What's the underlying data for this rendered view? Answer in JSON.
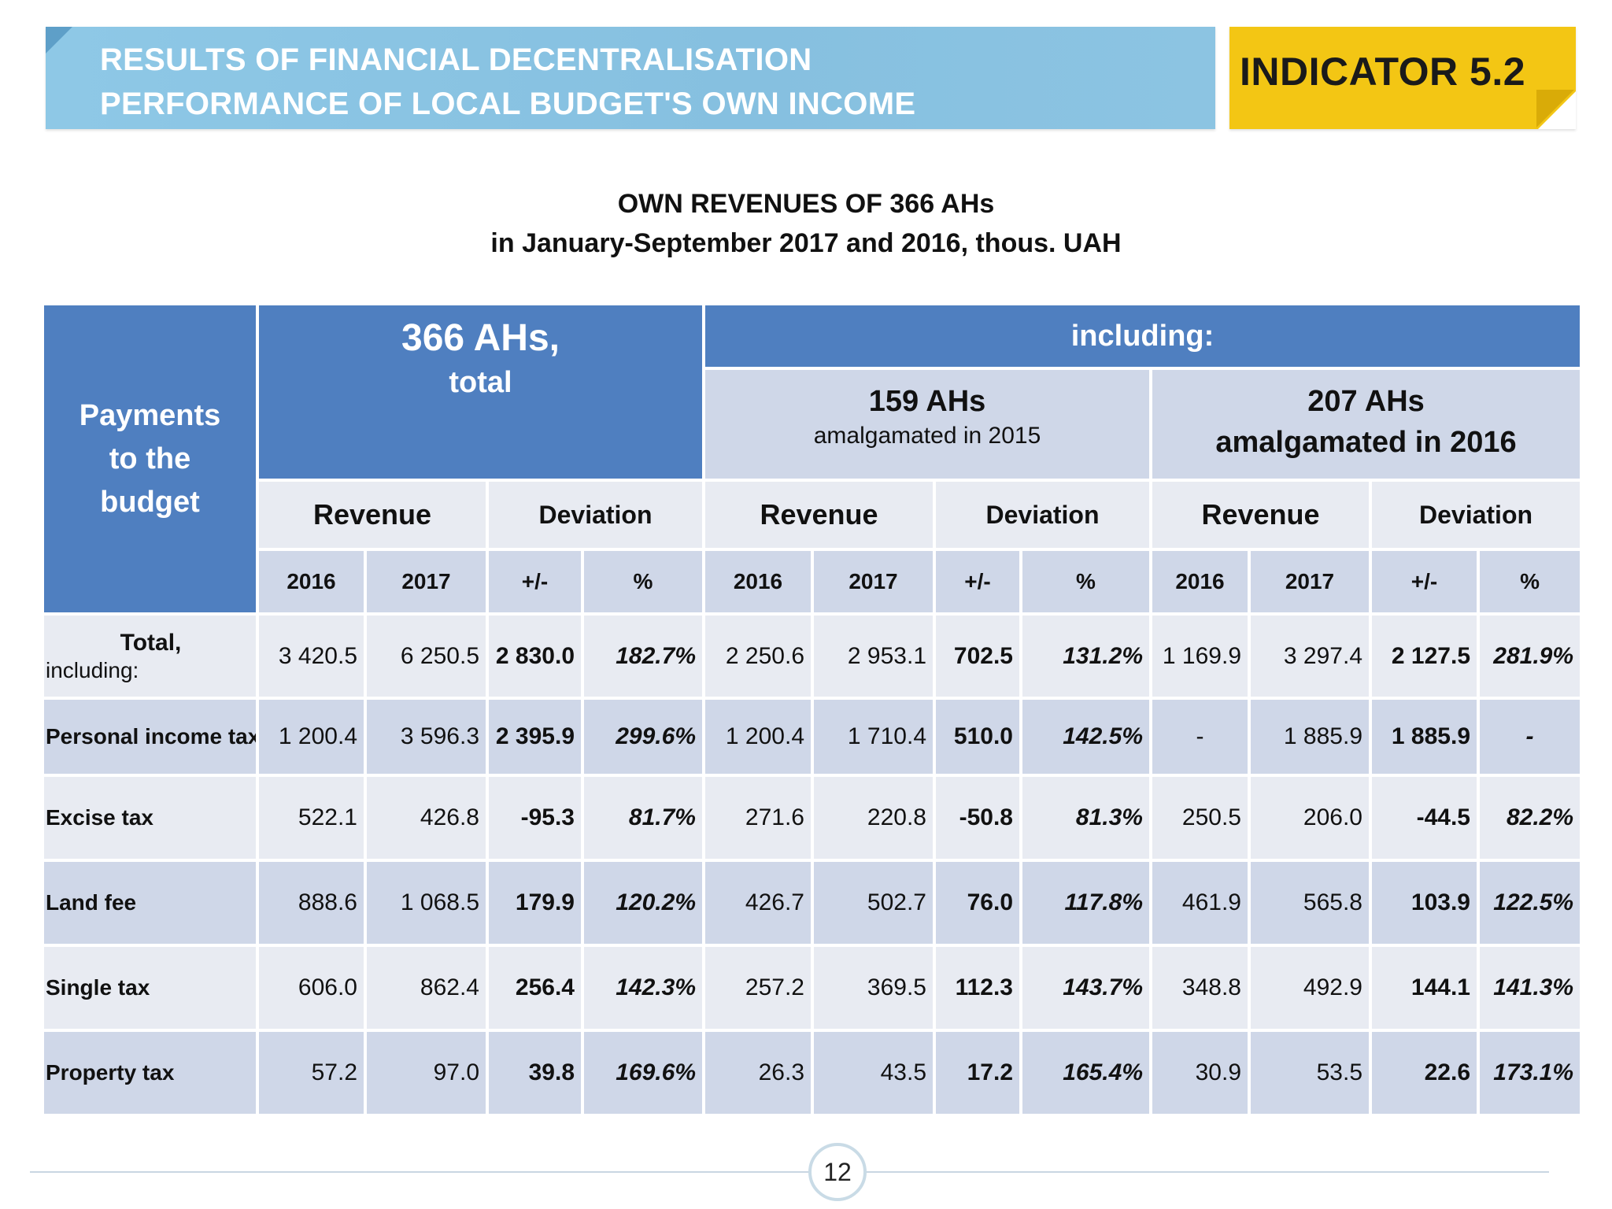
{
  "header": {
    "line1": "RESULTS OF FINANCIAL DECENTRALISATION",
    "line2": "PERFORMANCE OF LOCAL BUDGET'S OWN INCOME",
    "indicator": "INDICATOR 5.2"
  },
  "subtitle": {
    "line1": "OWN REVENUES OF 366 AHs",
    "line2": "in January-September 2017 and 2016, thous. UAH"
  },
  "table": {
    "col_payments": [
      "Payments",
      "to the",
      "budget"
    ],
    "group_total": {
      "line1": "366 AHs,",
      "line2": "total"
    },
    "including": "including:",
    "group_a": {
      "line1": "159 AHs",
      "line2": "amalgamated in 2015"
    },
    "group_b": {
      "line1": "207 AHs",
      "line2": "amalgamated in 2016"
    },
    "revenue": "Revenue",
    "deviation": "Deviation",
    "y2016": "2016",
    "y2017": "2017",
    "plusminus": "+/-",
    "pct": "%",
    "total_label": "Total,",
    "total_sub": "including:",
    "rows": [
      {
        "label": "Personal income tax",
        "v": [
          "1 200.4",
          "3 596.3",
          "2 395.9",
          "299.6%",
          "1 200.4",
          "1 710.4",
          "510.0",
          "142.5%",
          "-",
          "1 885.9",
          "1 885.9",
          "-"
        ]
      },
      {
        "label": "Excise tax",
        "v": [
          "522.1",
          "426.8",
          "-95.3",
          "81.7%",
          "271.6",
          "220.8",
          "-50.8",
          "81.3%",
          "250.5",
          "206.0",
          "-44.5",
          "82.2%"
        ]
      },
      {
        "label": "Land fee",
        "v": [
          "888.6",
          "1 068.5",
          "179.9",
          "120.2%",
          "426.7",
          "502.7",
          "76.0",
          "117.8%",
          "461.9",
          "565.8",
          "103.9",
          "122.5%"
        ]
      },
      {
        "label": "Single tax",
        "v": [
          "606.0",
          "862.4",
          "256.4",
          "142.3%",
          "257.2",
          "369.5",
          "112.3",
          "143.7%",
          "348.8",
          "492.9",
          "144.1",
          "141.3%"
        ]
      },
      {
        "label": "Property tax",
        "v": [
          "57.2",
          "97.0",
          "39.8",
          "169.6%",
          "26.3",
          "43.5",
          "17.2",
          "165.4%",
          "30.9",
          "53.5",
          "22.6",
          "173.1%"
        ]
      }
    ],
    "total": [
      "3 420.5",
      "6 250.5",
      "2 830.0",
      "182.7%",
      "2 250.6",
      "2 953.1",
      "702.5",
      "131.2%",
      "1 169.9",
      "3 297.4",
      "2 127.5",
      "281.9%"
    ]
  },
  "page_number": "12"
}
